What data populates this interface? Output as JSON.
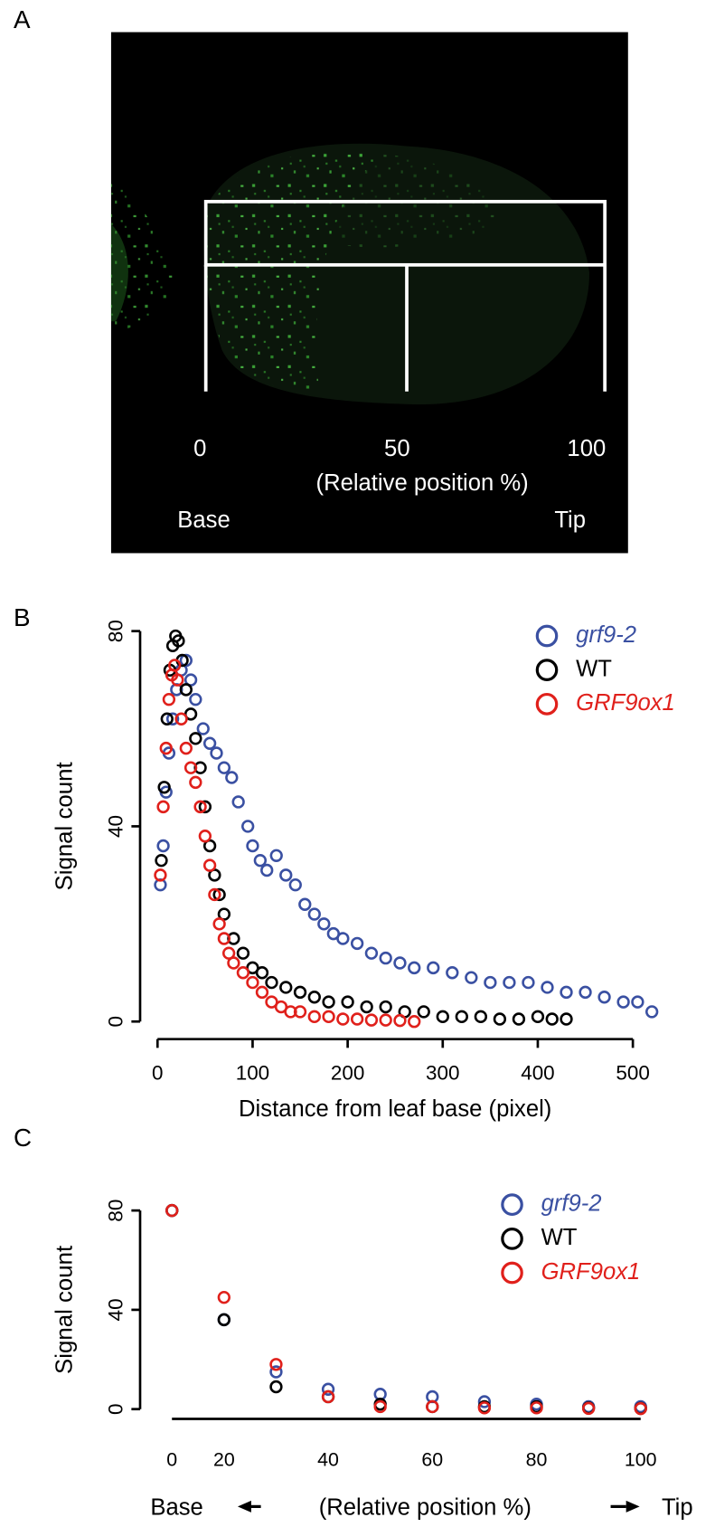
{
  "panel_a": {
    "label": "A",
    "tick_labels": [
      "0",
      "50",
      "100"
    ],
    "axis_label": "(Relative position %)",
    "base": "Base",
    "tip": "Tip"
  },
  "chart_data": [
    {
      "type": "scatter",
      "panel_label": "B",
      "xlabel": "Distance from leaf base (pixel)",
      "ylabel": "Signal count",
      "xlim": [
        -10,
        530
      ],
      "ylim": [
        -5,
        85
      ],
      "xticks": [
        0,
        100,
        200,
        300,
        400,
        500
      ],
      "yticks": [
        0,
        40,
        80
      ],
      "legend": "upper right",
      "series": [
        {
          "name": "grf9-2",
          "color": "#3a50a2",
          "italic": true,
          "x": [
            3,
            6,
            9,
            12,
            16,
            20,
            25,
            30,
            35,
            40,
            48,
            55,
            62,
            70,
            78,
            85,
            95,
            100,
            108,
            115,
            125,
            135,
            145,
            155,
            165,
            175,
            185,
            195,
            210,
            225,
            240,
            255,
            270,
            290,
            310,
            330,
            350,
            370,
            390,
            410,
            430,
            450,
            470,
            490,
            505,
            520
          ],
          "y": [
            28,
            36,
            47,
            55,
            62,
            68,
            72,
            74,
            70,
            66,
            60,
            57,
            55,
            52,
            50,
            45,
            40,
            36,
            33,
            31,
            34,
            30,
            28,
            24,
            22,
            20,
            18,
            17,
            16,
            14,
            13,
            12,
            11,
            11,
            10,
            9,
            8,
            8,
            8,
            7,
            6,
            6,
            5,
            4,
            4,
            2
          ]
        },
        {
          "name": "WT",
          "color": "#000000",
          "italic": false,
          "x": [
            4,
            7,
            10,
            13,
            16,
            19,
            22,
            26,
            30,
            35,
            40,
            45,
            50,
            55,
            60,
            65,
            70,
            80,
            90,
            100,
            110,
            120,
            135,
            150,
            165,
            180,
            200,
            220,
            240,
            260,
            280,
            300,
            320,
            340,
            360,
            380,
            400,
            415,
            430
          ],
          "y": [
            33,
            48,
            62,
            72,
            77,
            79,
            78,
            74,
            68,
            63,
            58,
            52,
            44,
            36,
            30,
            26,
            22,
            17,
            14,
            11,
            10,
            8,
            7,
            6,
            5,
            4,
            4,
            3,
            3,
            2,
            2,
            1,
            1,
            1,
            0.5,
            0.5,
            1,
            0.5,
            0.5
          ]
        },
        {
          "name": "GRF9ox1",
          "color": "#e0201b",
          "italic": true,
          "x": [
            3,
            6,
            9,
            12,
            15,
            18,
            21,
            25,
            30,
            35,
            40,
            45,
            50,
            55,
            60,
            65,
            70,
            75,
            80,
            90,
            100,
            110,
            120,
            130,
            140,
            150,
            165,
            180,
            195,
            210,
            225,
            240,
            255,
            270
          ],
          "y": [
            30,
            44,
            56,
            66,
            71,
            73,
            70,
            62,
            56,
            52,
            49,
            44,
            38,
            32,
            26,
            20,
            17,
            14,
            12,
            10,
            8,
            6,
            4,
            3,
            2,
            2,
            1,
            1,
            0.5,
            0.5,
            0.3,
            0.3,
            0.2,
            0
          ]
        }
      ]
    },
    {
      "type": "scatter",
      "panel_label": "C",
      "xlabel": "(Relative position %)",
      "ylabel": "Signal count",
      "base_label": "Base",
      "tip_label": "Tip",
      "categories": [
        "0",
        "20",
        null,
        "40",
        null,
        "60",
        null,
        "80",
        null,
        "100"
      ],
      "ylim": [
        -3,
        84
      ],
      "yticks": [
        0,
        40,
        80
      ],
      "legend": "upper right",
      "series": [
        {
          "name": "grf9-2",
          "color": "#3a50a2",
          "italic": true,
          "values": [
            80,
            36,
            15,
            8,
            6,
            5,
            3,
            2,
            1,
            1
          ]
        },
        {
          "name": "WT",
          "color": "#000000",
          "italic": false,
          "values": [
            80,
            36,
            9,
            5,
            2,
            1,
            1,
            1,
            0.5,
            0.3
          ]
        },
        {
          "name": "GRF9ox1",
          "color": "#e0201b",
          "italic": true,
          "values": [
            80,
            45,
            18,
            5,
            1,
            1,
            0.5,
            0.5,
            0.3,
            0.2
          ]
        }
      ]
    }
  ]
}
